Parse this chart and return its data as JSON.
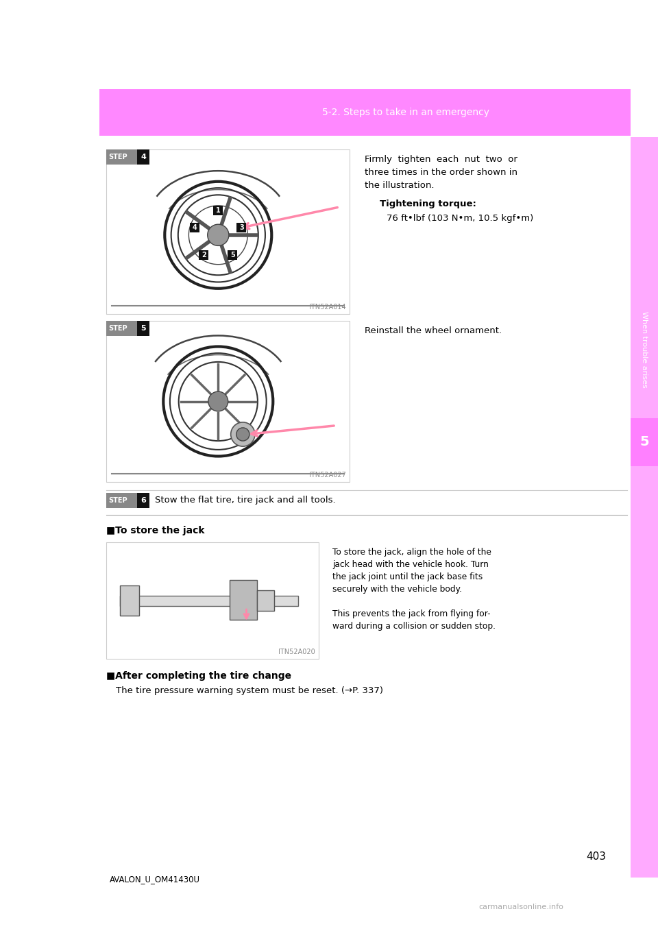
{
  "page_bg": "#ffffff",
  "header_bg": "#ff80ff",
  "header_text": "5-2. Steps to take in an emergency",
  "header_text_color": "#ffffff",
  "right_sidebar_bg": "#ffaaff",
  "right_tab_bg": "#ff80ff",
  "right_tab_text": "When trouble arises",
  "right_tab_number": "5",
  "page_number": "403",
  "footer_left": "AVALON_U_OM41430U",
  "footer_right": "carmanualsonline.info",
  "step4_img_id": "ITN52A014",
  "step4_text_line1": "Firmly  tighten  each  nut  two  or",
  "step4_text_line2": "three times in the order shown in",
  "step4_text_line3": "the illustration.",
  "step4_bold_label": "Tightening torque:",
  "step4_torque": "76 ft•lbf (103 N•m, 10.5 kgf•m)",
  "step5_img_id": "ITN52A027",
  "step5_text": "Reinstall the wheel ornament.",
  "step6_text": "Stow the flat tire, tire jack and all tools.",
  "jack_section_label": "■To store the jack",
  "jack_img_id": "ITN52A020",
  "jack_text_line1": "To store the jack, align the hole of the",
  "jack_text_line2": "jack head with the vehicle hook. Turn",
  "jack_text_line3": "the jack joint until the jack base fits",
  "jack_text_line4": "securely with the vehicle body.",
  "jack_text_line5": "This prevents the jack from flying for-",
  "jack_text_line6": "ward during a collision or sudden stop.",
  "after_section_label": "■After completing the tire change",
  "after_text": "The tire pressure warning system must be reset. (→P. 337)"
}
